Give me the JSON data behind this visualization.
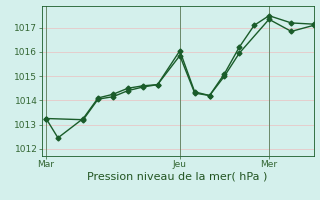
{
  "background_color": "#d4f0ec",
  "grid_color_major": "#e8c8c8",
  "grid_color_minor": "#e8c8c8",
  "line_color": "#1a5c2a",
  "xlabel": "Pression niveau de la mer( hPa )",
  "xtick_labels": [
    "Mar",
    "Jeu",
    "Mer"
  ],
  "xtick_positions": [
    0,
    9,
    15
  ],
  "ylim": [
    1011.7,
    1017.9
  ],
  "yticks": [
    1012,
    1013,
    1014,
    1015,
    1016,
    1017
  ],
  "xlim": [
    -0.3,
    18
  ],
  "vline_positions": [
    0,
    9,
    15
  ],
  "series1_x": [
    0,
    0.8,
    2.5,
    3.5,
    4.5,
    5.5,
    6.5,
    7.5,
    9,
    10,
    11,
    12,
    13,
    14,
    15,
    16.5,
    18
  ],
  "series1_y": [
    1013.25,
    1012.45,
    1013.25,
    1014.1,
    1014.25,
    1014.5,
    1014.6,
    1014.65,
    1016.05,
    1014.35,
    1014.2,
    1015.1,
    1016.2,
    1017.1,
    1017.5,
    1017.2,
    1017.15
  ],
  "series2_x": [
    0,
    2.5,
    3.5,
    4.5,
    5.5,
    6.5,
    7.5,
    9,
    10,
    11,
    12,
    13,
    15,
    16.5,
    18
  ],
  "series2_y": [
    1013.25,
    1013.2,
    1014.05,
    1014.15,
    1014.4,
    1014.55,
    1014.65,
    1015.85,
    1014.3,
    1014.2,
    1015.0,
    1015.95,
    1017.35,
    1016.85,
    1017.1
  ],
  "marker": "D",
  "markersize": 2.5,
  "linewidth": 1.0,
  "tick_fontsize": 6.5,
  "xlabel_fontsize": 8,
  "tick_color": "#336633",
  "label_color": "#225522"
}
